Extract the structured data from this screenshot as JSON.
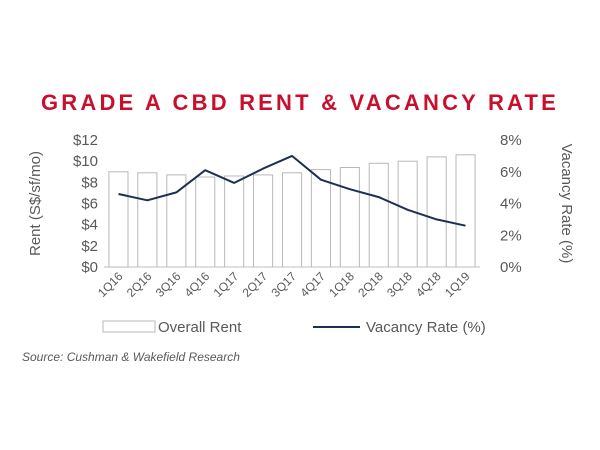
{
  "title": "GRADE A CBD RENT & VACANCY RATE",
  "source": "Source: Cushman & Wakefield Research",
  "colors": {
    "title": "#c8102e",
    "bar_fill": "#ffffff",
    "bar_stroke": "#b8b8b8",
    "line": "#1f2f4f",
    "axis_text": "#595959",
    "axis_line": "#bfbfbf"
  },
  "chart_data": {
    "type": "bar",
    "categories": [
      "1Q16",
      "2Q16",
      "3Q16",
      "4Q16",
      "1Q17",
      "2Q17",
      "3Q17",
      "4Q17",
      "1Q18",
      "2Q18",
      "3Q18",
      "4Q18",
      "1Q19"
    ],
    "series": [
      {
        "name": "Overall Rent",
        "type": "bar",
        "axis": "left",
        "values": [
          9.0,
          8.9,
          8.7,
          8.5,
          8.6,
          8.7,
          8.9,
          9.2,
          9.4,
          9.8,
          10.0,
          10.4,
          10.6
        ]
      },
      {
        "name": "Vacancy Rate (%)",
        "type": "line",
        "axis": "right",
        "values": [
          4.6,
          4.2,
          4.7,
          6.1,
          5.3,
          6.2,
          7.0,
          5.5,
          4.9,
          4.4,
          3.6,
          3.0,
          2.6
        ]
      }
    ],
    "ylabel": "Rent (S$/sf/mo)",
    "y2label": "Vacancy Rate (%)",
    "ylim": [
      0,
      12
    ],
    "yticks": [
      "$0",
      "$2",
      "$4",
      "$6",
      "$8",
      "$10",
      "$12"
    ],
    "y2lim": [
      0,
      8
    ],
    "y2ticks": [
      "0%",
      "2%",
      "4%",
      "6%",
      "8%"
    ],
    "grid": false,
    "legend_position": "bottom"
  }
}
